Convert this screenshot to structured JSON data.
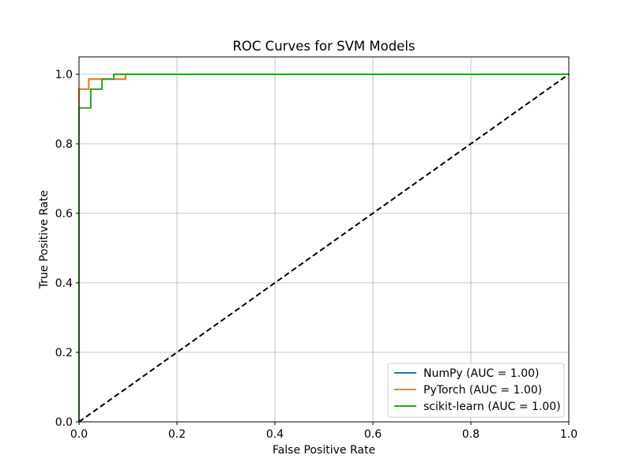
{
  "chart_data": {
    "type": "line",
    "title": "ROC Curves for SVM Models",
    "xlabel": "False Positive Rate",
    "ylabel": "True Positive Rate",
    "xlim": [
      0.0,
      1.0
    ],
    "ylim": [
      0.0,
      1.05
    ],
    "x_ticks": [
      "0.0",
      "0.2",
      "0.4",
      "0.6",
      "0.8",
      "1.0"
    ],
    "y_ticks": [
      "0.0",
      "0.2",
      "0.4",
      "0.6",
      "0.8",
      "1.0"
    ],
    "grid": true,
    "legend_position": "bottom-right",
    "series": [
      {
        "name": "NumPy (AUC = 1.00)",
        "color": "#1f77b4",
        "x": [
          0.0,
          0.0,
          0.02,
          0.02,
          0.095,
          0.095,
          1.0
        ],
        "y": [
          0.0,
          0.957,
          0.957,
          0.986,
          0.986,
          1.0,
          1.0
        ]
      },
      {
        "name": "PyTorch (AUC = 1.00)",
        "color": "#ff7f0e",
        "x": [
          0.0,
          0.0,
          0.02,
          0.02,
          0.095,
          0.095,
          1.0
        ],
        "y": [
          0.0,
          0.957,
          0.957,
          0.986,
          0.986,
          1.0,
          1.0
        ]
      },
      {
        "name": "scikit-learn (AUC = 1.00)",
        "color": "#2ca02c",
        "x": [
          0.0,
          0.0,
          0.024,
          0.024,
          0.047,
          0.047,
          0.071,
          0.071,
          1.0
        ],
        "y": [
          0.0,
          0.903,
          0.903,
          0.957,
          0.957,
          0.986,
          0.986,
          1.0,
          1.0
        ]
      }
    ],
    "reference_line": {
      "x": [
        0.0,
        1.0
      ],
      "y": [
        0.0,
        1.0
      ],
      "color": "#000000",
      "style": "dashed"
    }
  }
}
